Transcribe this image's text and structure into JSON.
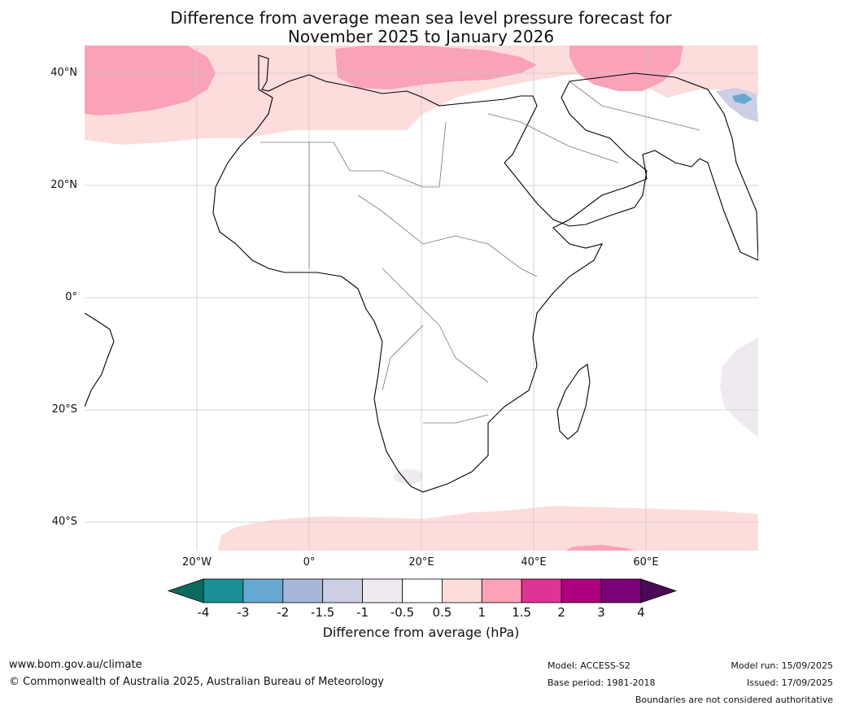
{
  "title_line1": "Difference from average mean sea level pressure forecast for",
  "title_line2": "November 2025 to January 2026",
  "map": {
    "lat_labels": [
      "40°N",
      "20°N",
      "0°",
      "20°S",
      "40°S"
    ],
    "lon_labels": [
      "20°W",
      "0°",
      "20°E",
      "40°E",
      "60°E"
    ],
    "extent": {
      "lon_min": -40,
      "lon_max": 80,
      "lat_min": -45,
      "lat_max": 45
    }
  },
  "colorbar": {
    "label": "Difference from average (hPa)",
    "ticks": [
      "-4",
      "-3",
      "-2",
      "-1.5",
      "-1",
      "-0.5",
      "0.5",
      "1",
      "1.5",
      "2",
      "3",
      "4"
    ],
    "under_color": "#0b6a5e",
    "over_color": "#4a0a55",
    "bins": [
      {
        "from": -4,
        "to": -3,
        "color": "#1a8f96"
      },
      {
        "from": -3,
        "to": -2,
        "color": "#66a8d0"
      },
      {
        "from": -2,
        "to": -1.5,
        "color": "#a5b7d9"
      },
      {
        "from": -1.5,
        "to": -1,
        "color": "#cccfe4"
      },
      {
        "from": -1,
        "to": -0.5,
        "color": "#efeaf0"
      },
      {
        "from": -0.5,
        "to": 0.5,
        "color": "#ffffff"
      },
      {
        "from": 0.5,
        "to": 1,
        "color": "#fddcdc"
      },
      {
        "from": 1,
        "to": 1.5,
        "color": "#f9a2b8"
      },
      {
        "from": 1.5,
        "to": 2,
        "color": "#dd3497"
      },
      {
        "from": 2,
        "to": 3,
        "color": "#ae017e"
      },
      {
        "from": 3,
        "to": 4,
        "color": "#7a0177"
      }
    ]
  },
  "footer": {
    "website": "www.bom.gov.au/climate",
    "copyright": "© Commonwealth of Australia 2025, Australian Bureau of Meteorology",
    "model": "Model: ACCESS-S2",
    "base_period": "Base period: 1981-2018",
    "model_run": "Model run: 15/09/2025",
    "issued": "Issued: 17/09/2025",
    "boundaries": "Boundaries are not considered authoritative"
  }
}
